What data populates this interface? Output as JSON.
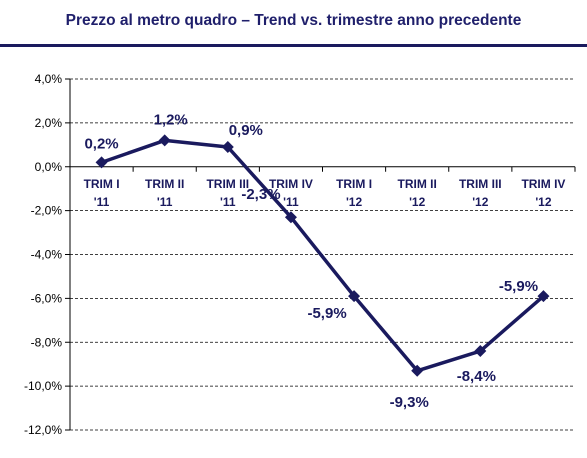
{
  "chart_data": {
    "type": "line",
    "title": "Prezzo al metro quadro – Trend vs. trimestre anno precedente",
    "categories": [
      [
        "TRIM I",
        "'11"
      ],
      [
        "TRIM II",
        "'11"
      ],
      [
        "TRIM III",
        "'11"
      ],
      [
        "TRIM IV",
        "'11"
      ],
      [
        "TRIM I",
        "'12"
      ],
      [
        "TRIM II",
        "'12"
      ],
      [
        "TRIM III",
        "'12"
      ],
      [
        "TRIM IV",
        "'12"
      ]
    ],
    "series": [
      {
        "values": [
          0.2,
          1.2,
          0.9,
          -2.3,
          -5.9,
          -9.3,
          -8.4,
          -5.9
        ],
        "labels": [
          "0,2%",
          "1,2%",
          "0,9%",
          "-2,3%",
          "-5,9%",
          "-9,3%",
          "-8,4%",
          "-5,9%"
        ],
        "color": "#1a1a5e",
        "marker": "diamond"
      }
    ],
    "ylim": [
      -12,
      4
    ],
    "yticks": [
      4,
      2,
      0,
      -2,
      -4,
      -6,
      -8,
      -10,
      -12
    ],
    "ytick_labels": [
      "4,0%",
      "2,0%",
      "0,0%",
      "-2,0%",
      "-4,0%",
      "-6,0%",
      "-8,0%",
      "-10,0%",
      "-12,0%"
    ],
    "grid": "horizontal-dashed",
    "legend": "none"
  }
}
